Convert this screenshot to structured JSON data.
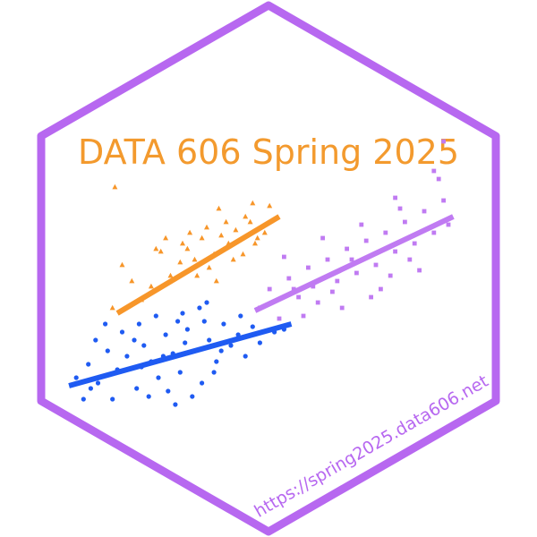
{
  "sticker": {
    "title": "DATA 606 Spring 2025",
    "url": "https://spring2025.data606.net"
  },
  "colors": {
    "background": "#ffffff",
    "hex_border": "#B768F0",
    "title": "#F39A2E",
    "url": "#B768F0",
    "orange_series": "#F7962A",
    "blue_series": "#1F5BF2",
    "purple_series": "#C07BF2"
  },
  "chart_data": {
    "type": "scatter",
    "title": "",
    "xlabel": "",
    "ylabel": "",
    "grid": false,
    "legend": "none",
    "series": [
      {
        "marker": "triangle",
        "color": "#F7962A",
        "points": [
          [
            -0.9,
            4.2
          ],
          [
            -0.5,
            5.8
          ],
          [
            -0.1,
            5.2
          ],
          [
            0.3,
            4.5
          ],
          [
            0.7,
            5.0
          ],
          [
            1.1,
            6.3
          ],
          [
            1.5,
            5.4
          ],
          [
            1.9,
            5.9
          ],
          [
            2.2,
            6.4
          ],
          [
            2.5,
            6.0
          ],
          [
            2.8,
            6.8
          ],
          [
            3.1,
            5.7
          ],
          [
            3.3,
            6.2
          ],
          [
            3.6,
            6.9
          ],
          [
            3.9,
            6.6
          ],
          [
            4.2,
            7.1
          ],
          [
            4.5,
            6.2
          ],
          [
            4.8,
            7.4
          ],
          [
            5.1,
            6.8
          ],
          [
            5.4,
            7.0
          ],
          [
            1.3,
            6.8
          ],
          [
            2.0,
            6.6
          ],
          [
            2.6,
            5.4
          ],
          [
            3.0,
            7.2
          ],
          [
            3.4,
            5.2
          ],
          [
            3.8,
            7.4
          ],
          [
            4.1,
            6.0
          ],
          [
            4.6,
            7.6
          ],
          [
            5.0,
            6.6
          ],
          [
            2.3,
            7.0
          ],
          [
            -0.8,
            8.7
          ],
          [
            0.9,
            6.4
          ],
          [
            3.5,
            7.9
          ],
          [
            4.9,
            8.1
          ],
          [
            5.6,
            8.0
          ]
        ],
        "fit": {
          "x0": -0.7,
          "y0": 4.0,
          "x1": 6.0,
          "y1": 7.6
        }
      },
      {
        "marker": "circle",
        "color": "#1F5BF2",
        "points": [
          [
            -2.4,
            1.6
          ],
          [
            -1.9,
            2.1
          ],
          [
            -1.5,
            1.4
          ],
          [
            -1.1,
            2.6
          ],
          [
            -0.7,
            1.9
          ],
          [
            -0.3,
            2.4
          ],
          [
            0.1,
            1.2
          ],
          [
            0.4,
            2.8
          ],
          [
            0.7,
            2.2
          ],
          [
            1.0,
            1.6
          ],
          [
            1.3,
            3.2
          ],
          [
            1.6,
            2.5
          ],
          [
            1.9,
            1.8
          ],
          [
            2.2,
            3.4
          ],
          [
            2.5,
            2.6
          ],
          [
            2.8,
            1.4
          ],
          [
            3.1,
            3.0
          ],
          [
            3.4,
            2.2
          ],
          [
            3.7,
            3.6
          ],
          [
            4.0,
            2.8
          ],
          [
            4.3,
            3.2
          ],
          [
            4.6,
            2.4
          ],
          [
            4.9,
            3.5
          ],
          [
            5.2,
            2.9
          ],
          [
            -0.5,
            3.3
          ],
          [
            0.2,
            3.6
          ],
          [
            0.9,
            3.9
          ],
          [
            1.4,
            1.1
          ],
          [
            2.0,
            4.0
          ],
          [
            2.7,
            4.2
          ],
          [
            3.3,
            1.8
          ],
          [
            0.6,
            0.9
          ],
          [
            -1.6,
            3.0
          ],
          [
            -2.1,
            0.8
          ],
          [
            1.8,
            3.7
          ],
          [
            2.4,
            0.9
          ],
          [
            3.0,
            4.4
          ],
          [
            -0.9,
            0.8
          ],
          [
            0.3,
            2.0
          ],
          [
            1.2,
            2.4
          ],
          [
            2.1,
            2.9
          ],
          [
            3.6,
            2.6
          ],
          [
            4.4,
            3.9
          ],
          [
            5.8,
            3.3
          ],
          [
            6.2,
            3.4
          ],
          [
            -1.2,
            3.6
          ],
          [
            1.7,
            0.6
          ],
          [
            2.9,
            3.7
          ],
          [
            0.0,
            3.0
          ],
          [
            -1.8,
            1.2
          ]
        ],
        "fit": {
          "x0": -2.7,
          "y0": 1.3,
          "x1": 6.5,
          "y1": 3.6
        }
      },
      {
        "marker": "square",
        "color": "#C07BF2",
        "points": [
          [
            5.2,
            4.2
          ],
          [
            5.6,
            4.9
          ],
          [
            6.0,
            3.8
          ],
          [
            6.4,
            5.3
          ],
          [
            6.8,
            4.6
          ],
          [
            7.2,
            5.7
          ],
          [
            7.6,
            4.4
          ],
          [
            8.0,
            6.0
          ],
          [
            8.4,
            5.2
          ],
          [
            8.8,
            6.4
          ],
          [
            9.2,
            5.5
          ],
          [
            9.6,
            6.7
          ],
          [
            10.0,
            5.8
          ],
          [
            10.4,
            7.0
          ],
          [
            10.8,
            6.3
          ],
          [
            11.2,
            7.4
          ],
          [
            11.6,
            6.6
          ],
          [
            12.0,
            7.8
          ],
          [
            12.4,
            7.0
          ],
          [
            12.8,
            8.2
          ],
          [
            6.2,
            6.1
          ],
          [
            7.0,
            3.9
          ],
          [
            7.8,
            6.8
          ],
          [
            8.6,
            4.2
          ],
          [
            9.4,
            7.3
          ],
          [
            10.2,
            4.9
          ],
          [
            11.0,
            7.9
          ],
          [
            11.8,
            5.6
          ],
          [
            12.6,
            9.0
          ],
          [
            13.0,
            7.3
          ],
          [
            12.8,
            10.4
          ],
          [
            12.4,
            9.3
          ],
          [
            8.2,
            4.8
          ],
          [
            9.8,
            4.6
          ],
          [
            10.6,
            5.4
          ],
          [
            11.4,
            6.0
          ],
          [
            6.6,
            4.9
          ],
          [
            7.4,
            5.0
          ],
          [
            9.0,
            6.0
          ],
          [
            10.8,
            8.3
          ]
        ],
        "fit": {
          "x0": 5.0,
          "y0": 4.1,
          "x1": 13.2,
          "y1": 7.6
        }
      }
    ]
  }
}
